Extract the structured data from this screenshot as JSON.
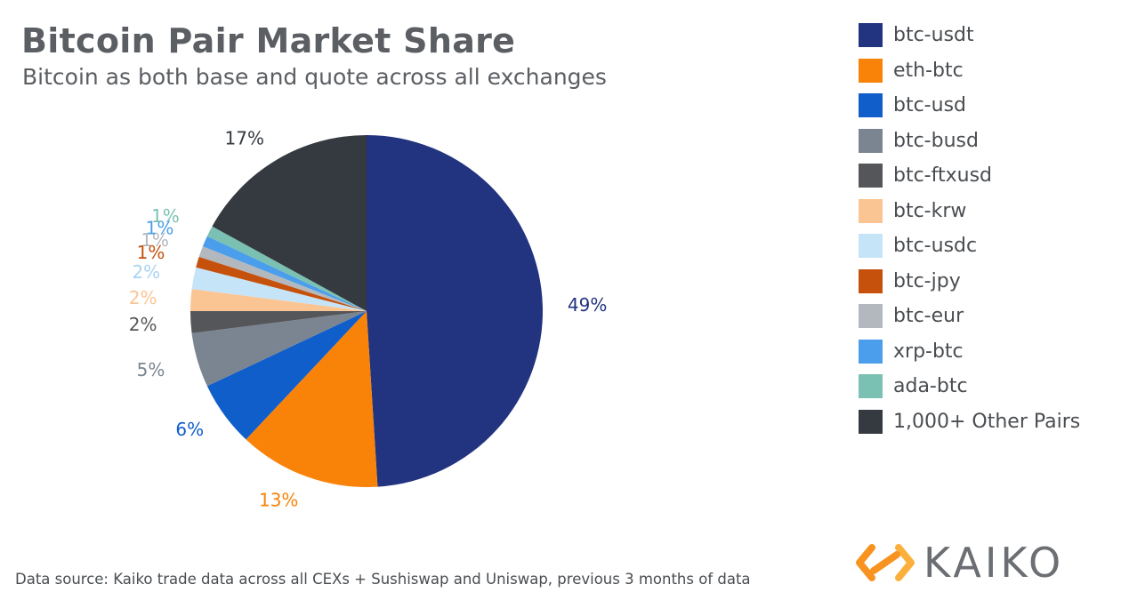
{
  "chart_data": {
    "type": "pie",
    "title": "Bitcoin Pair Market Share",
    "subtitle": "Bitcoin as both base and quote across all exchanges",
    "series": [
      {
        "name": "btc-usdt",
        "value": 49,
        "label": "49%",
        "color": "#22337f"
      },
      {
        "name": "eth-btc",
        "value": 13,
        "label": "13%",
        "color": "#f98309"
      },
      {
        "name": "btc-usd",
        "value": 6,
        "label": "6%",
        "color": "#0f5ec9"
      },
      {
        "name": "btc-busd",
        "value": 5,
        "label": "5%",
        "color": "#7b8591"
      },
      {
        "name": "btc-ftxusd",
        "value": 2,
        "label": "2%",
        "color": "#555659"
      },
      {
        "name": "btc-krw",
        "value": 2,
        "label": "2%",
        "color": "#fbc493"
      },
      {
        "name": "btc-usdc",
        "value": 2,
        "label": "2%",
        "color": "#c6e4f8"
      },
      {
        "name": "btc-jpy",
        "value": 1,
        "label": "1%",
        "color": "#c5510c"
      },
      {
        "name": "btc-eur",
        "value": 1,
        "label": "1%",
        "color": "#b3b7be"
      },
      {
        "name": "xrp-btc",
        "value": 1,
        "label": "1%",
        "color": "#4a9eeb"
      },
      {
        "name": "ada-btc",
        "value": 1,
        "label": "1%",
        "color": "#7bc1b3"
      },
      {
        "name": "1,000+ Other Pairs",
        "value": 17,
        "label": "17%",
        "color": "#353a40"
      }
    ],
    "legend_position": "right"
  },
  "footer": {
    "source": "Data source: Kaiko trade data across all CEXs + Sushiswap and Uniswap, previous 3 months of data"
  },
  "logo": {
    "text": "KAIKO",
    "colors": [
      "#f7931e",
      "#fbb03b"
    ]
  }
}
